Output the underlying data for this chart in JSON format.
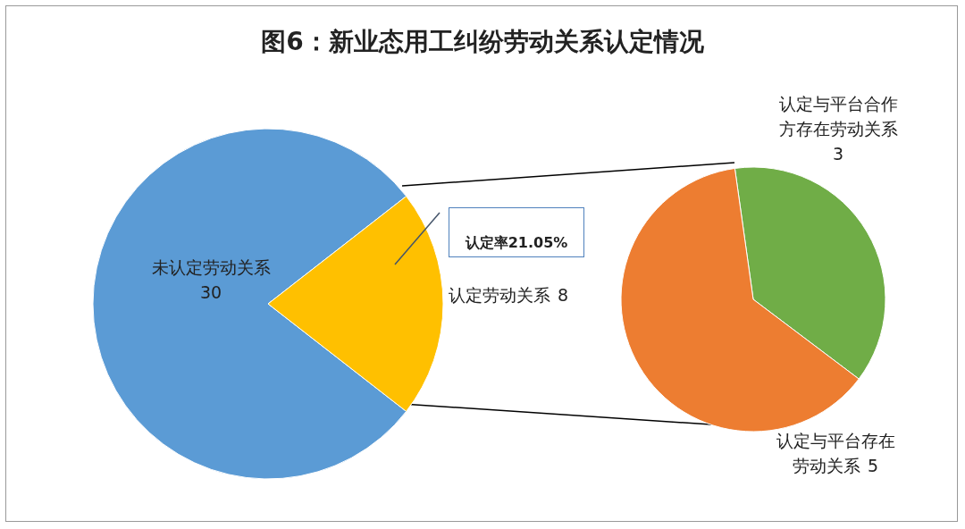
{
  "chart_data": [
    {
      "type": "pie",
      "title": "图6：新业态用工纠纷劳动关系认定情况",
      "categories": [
        "未认定劳动关系",
        "认定劳动关系"
      ],
      "values": [
        30,
        8
      ],
      "colors": [
        "#5b9bd5",
        "#ffc000"
      ],
      "data_labels": true,
      "annotations": [
        "认定率21.05%"
      ],
      "legend": false
    },
    {
      "type": "pie",
      "categories": [
        "认定与平台合作方存在劳动关系",
        "认定与平台存在劳动关系"
      ],
      "values": [
        3,
        5
      ],
      "colors": [
        "#70ad47",
        "#ed7d31"
      ],
      "data_labels": true,
      "legend": false
    }
  ]
}
